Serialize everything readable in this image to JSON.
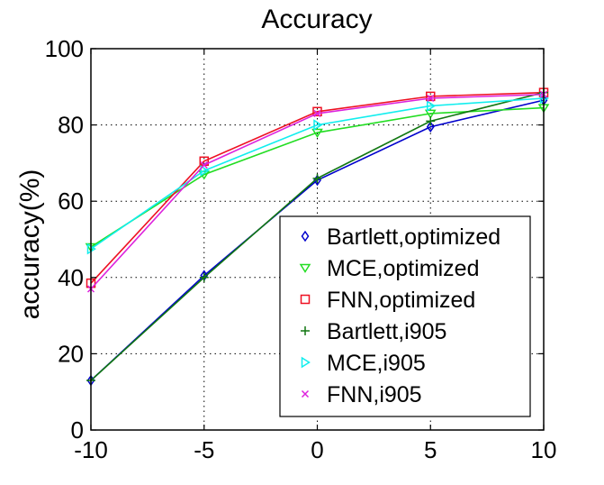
{
  "chart_data": {
    "type": "line",
    "title": "Accuracy",
    "xlabel": "",
    "ylabel": "accuracy(%)",
    "x": [
      -10,
      -5,
      0,
      5,
      10
    ],
    "xticks": [
      "-10",
      "-5",
      "0",
      "5",
      "10"
    ],
    "yticks": [
      "0",
      "20",
      "40",
      "60",
      "80",
      "100"
    ],
    "xlim": [
      -10,
      10
    ],
    "ylim": [
      0,
      100
    ],
    "grid": true,
    "legend_position": "lower-right",
    "series": [
      {
        "name": "Bartlett,optimized",
        "color": "#0000cc",
        "marker": "diamond",
        "values": [
          13,
          40.5,
          65.5,
          79.5,
          86.5
        ]
      },
      {
        "name": "MCE,optimized",
        "color": "#22dd22",
        "marker": "triangle-down",
        "values": [
          48,
          67,
          78,
          83,
          84.5
        ]
      },
      {
        "name": "FNN,optimized",
        "color": "#ee1122",
        "marker": "square",
        "values": [
          38.5,
          70.5,
          83.5,
          87.5,
          88.5
        ]
      },
      {
        "name": "Bartlett,i905",
        "color": "#117711",
        "marker": "plus",
        "values": [
          13,
          40,
          66,
          81,
          88.5
        ]
      },
      {
        "name": "MCE,i905",
        "color": "#11eeee",
        "marker": "triangle-right",
        "values": [
          47.5,
          68,
          80,
          85,
          87
        ]
      },
      {
        "name": "FNN,i905",
        "color": "#dd22dd",
        "marker": "x",
        "values": [
          37,
          69.5,
          83,
          87,
          88
        ]
      }
    ]
  }
}
